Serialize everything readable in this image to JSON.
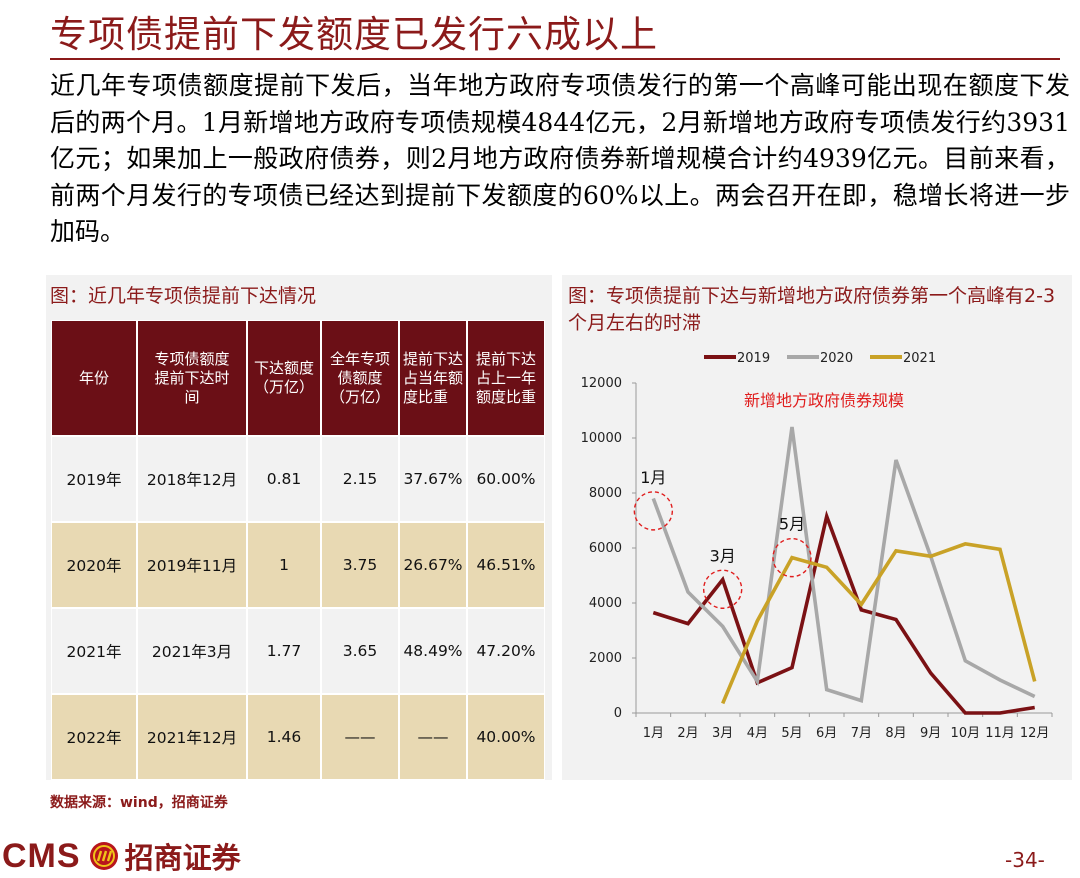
{
  "title": "专项债提前下发额度已发行六成以上",
  "body": "近几年专项债额度提前下发后，当年地方政府专项债发行的第一个高峰可能出现在额度下发后的两个月。1月新增地方政府专项债规模4844亿元，2月新增地方政府专项债发行约3931亿元；如果加上一般政府债券，则2月地方政府债券新增规模合计约4939亿元。目前来看，前两个月发行的专项债已经达到提前下发额度的60%以上。两会召开在即，稳增长将进一步加码。",
  "table": {
    "caption": "图：近几年专项债提前下达情况",
    "headers": [
      "年份",
      "专项债额度提前下达时间",
      "下达额度（万亿）",
      "全年专项债额度（万亿）",
      "提前下达占当年额度比重",
      "提前下达占上一年额度比重"
    ],
    "rows": [
      [
        "2019年",
        "2018年12月",
        "0.81",
        "2.15",
        "37.67%",
        "60.00%"
      ],
      [
        "2020年",
        "2019年11月",
        "1",
        "3.75",
        "26.67%",
        "46.51%"
      ],
      [
        "2021年",
        "2021年3月",
        "1.77",
        "3.65",
        "48.49%",
        "47.20%"
      ],
      [
        "2022年",
        "2021年12月",
        "1.46",
        "——",
        "——",
        "40.00%"
      ]
    ]
  },
  "chart_caption": "图：专项债提前下达与新增地方政府债券第一个高峰有2-3个月左右的时滞",
  "chart_data": {
    "type": "line",
    "annotation": "新增地方政府债券规模",
    "categories": [
      "1月",
      "2月",
      "3月",
      "4月",
      "5月",
      "6月",
      "7月",
      "8月",
      "9月",
      "10月",
      "11月",
      "12月"
    ],
    "ylim": [
      0,
      12000
    ],
    "yticks": [
      0,
      2000,
      4000,
      6000,
      8000,
      10000,
      12000
    ],
    "legend_position": "top",
    "series": [
      {
        "name": "2019",
        "color": "#7b1114",
        "values": [
          3650,
          3250,
          4850,
          1100,
          1650,
          7150,
          3750,
          3400,
          1450,
          0,
          0,
          200
        ]
      },
      {
        "name": "2020",
        "color": "#a8a8a8",
        "values": [
          7800,
          4400,
          3150,
          1150,
          10400,
          850,
          450,
          9200,
          5700,
          1900,
          1200,
          600
        ]
      },
      {
        "name": "2021",
        "color": "#c9a227",
        "values": [
          null,
          null,
          350,
          3350,
          5650,
          5300,
          3950,
          5900,
          5700,
          6150,
          5950,
          1150
        ]
      }
    ],
    "circles": [
      {
        "label": "1月",
        "x": 1,
        "y": 7350
      },
      {
        "label": "3月",
        "x": 3,
        "y": 4500
      },
      {
        "label": "5月",
        "x": 5,
        "y": 5650
      }
    ]
  },
  "source": "数据来源：wind，招商证券",
  "footer": {
    "logo_text": "CMS",
    "logo_cn": "招商证券",
    "page": "-34-"
  }
}
